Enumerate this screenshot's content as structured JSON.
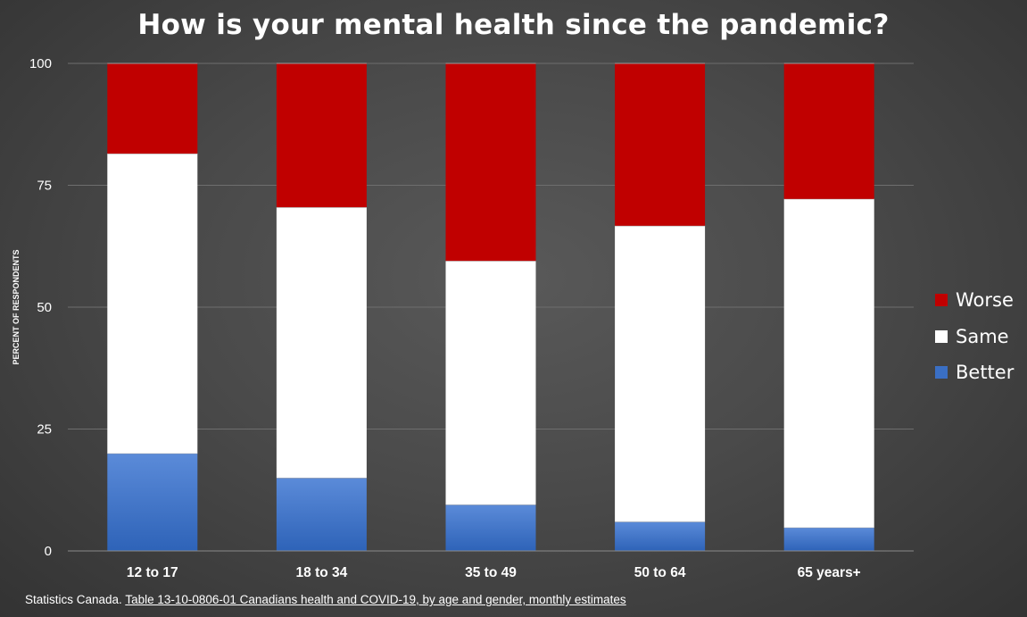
{
  "chart_data": {
    "type": "bar",
    "stacked": true,
    "title": "How is your mental health since the pandemic?",
    "ylabel": "PERCENT OF RESPONDENTS",
    "xlabel": "",
    "ylim": [
      0,
      100
    ],
    "yticks": [
      0,
      25,
      50,
      75,
      100
    ],
    "grid": true,
    "legend_position": "right",
    "categories": [
      "12 to 17",
      "18 to 34",
      "35 to 49",
      "50 to 64",
      "65 years+"
    ],
    "series": [
      {
        "name": "Better",
        "values": [
          20,
          15,
          9.5,
          6,
          4.8
        ],
        "color": "#3a6fc4"
      },
      {
        "name": "Same",
        "values": [
          61.5,
          55.5,
          50,
          60.7,
          67.4
        ],
        "color": "#ffffff"
      },
      {
        "name": "Worse",
        "values": [
          18.5,
          29.5,
          40.5,
          33.3,
          27.8
        ],
        "color": "#c00000"
      }
    ],
    "legend": [
      "Worse",
      "Same",
      "Better"
    ]
  },
  "source": {
    "prefix": "Statistics Canada. ",
    "link_text": "Table 13-10-0806-01  Canadians health and COVID-19, by age and gender, monthly estimates"
  }
}
